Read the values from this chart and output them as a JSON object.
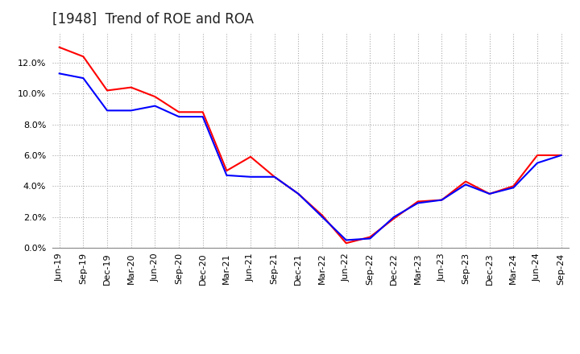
{
  "title": "[1948]  Trend of ROE and ROA",
  "x_labels": [
    "Jun-19",
    "Sep-19",
    "Dec-19",
    "Mar-20",
    "Jun-20",
    "Sep-20",
    "Dec-20",
    "Mar-21",
    "Jun-21",
    "Sep-21",
    "Dec-21",
    "Mar-22",
    "Jun-22",
    "Sep-22",
    "Dec-22",
    "Mar-23",
    "Jun-23",
    "Sep-23",
    "Dec-23",
    "Mar-24",
    "Jun-24",
    "Sep-24"
  ],
  "roe": [
    0.13,
    0.124,
    0.102,
    0.104,
    0.098,
    0.088,
    0.088,
    0.05,
    0.059,
    0.046,
    0.035,
    0.021,
    0.003,
    0.007,
    0.019,
    0.03,
    0.031,
    0.043,
    0.035,
    0.04,
    0.06,
    0.06
  ],
  "roa": [
    0.113,
    0.11,
    0.089,
    0.089,
    0.092,
    0.085,
    0.085,
    0.047,
    0.046,
    0.046,
    0.035,
    0.02,
    0.005,
    0.006,
    0.02,
    0.029,
    0.031,
    0.041,
    0.035,
    0.039,
    0.055,
    0.06
  ],
  "roe_color": "#ff0000",
  "roa_color": "#0000ff",
  "ylim": [
    0.0,
    0.14
  ],
  "yticks": [
    0.0,
    0.02,
    0.04,
    0.06,
    0.08,
    0.1,
    0.12
  ],
  "background_color": "#ffffff",
  "grid_color": "#aaaaaa",
  "title_fontsize": 12,
  "tick_fontsize": 8,
  "legend_fontsize": 10
}
